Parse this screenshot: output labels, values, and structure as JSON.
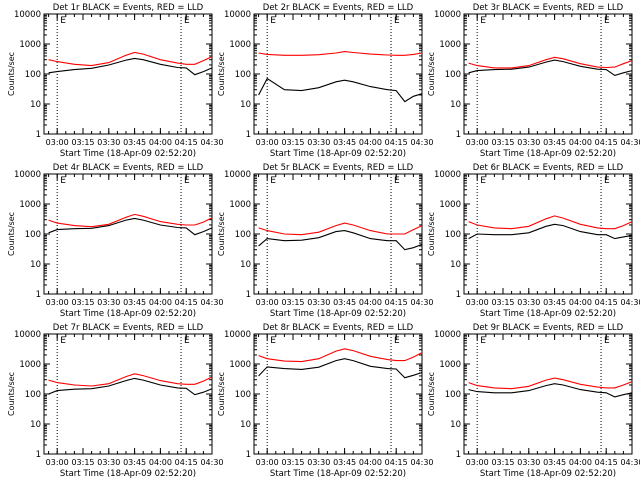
{
  "colors": {
    "events": "#000000",
    "lld": "#ff0000",
    "axis": "#000000",
    "marker": "#000000"
  },
  "shared": {
    "xlabel": "Start Time (18-Apr-09 02:52:20)",
    "ylabel": "Counts/sec",
    "x_tick_labels": [
      "03:00",
      "03:15",
      "03:30",
      "03:45",
      "04:00",
      "04:15",
      "04:30"
    ],
    "y_tick_labels": [
      "1",
      "10",
      "100",
      "1000",
      "10000"
    ],
    "x_range": [
      "02:52:20",
      "04:30"
    ],
    "y_range": [
      1,
      10000
    ],
    "y_scale": "log",
    "vertical_dotted_lines": [
      "03:00",
      "04:12"
    ],
    "corner_marker": "E"
  },
  "chart_data": [
    {
      "type": "line",
      "title": "Det 1r BLACK = Events, RED = LLD",
      "x": [
        "02:55",
        "03:00",
        "03:10",
        "03:20",
        "03:30",
        "03:40",
        "03:45",
        "03:50",
        "04:00",
        "04:10",
        "04:15",
        "04:20",
        "04:25",
        "04:30"
      ],
      "series": [
        {
          "name": "Events",
          "values": [
            110,
            120,
            140,
            155,
            200,
            290,
            330,
            300,
            210,
            165,
            160,
            95,
            120,
            160
          ]
        },
        {
          "name": "LLD",
          "values": [
            300,
            260,
            210,
            190,
            240,
            420,
            520,
            460,
            300,
            230,
            210,
            210,
            280,
            380
          ]
        }
      ]
    },
    {
      "type": "line",
      "title": "Det 2r BLACK = Events, RED = LLD",
      "x": [
        "02:55",
        "03:00",
        "03:10",
        "03:20",
        "03:30",
        "03:40",
        "03:45",
        "03:50",
        "04:00",
        "04:10",
        "04:15",
        "04:20",
        "04:25",
        "04:30"
      ],
      "series": [
        {
          "name": "Events",
          "values": [
            20,
            70,
            30,
            28,
            35,
            55,
            62,
            55,
            38,
            30,
            28,
            12,
            18,
            22
          ]
        },
        {
          "name": "LLD",
          "values": [
            500,
            450,
            420,
            420,
            440,
            500,
            560,
            520,
            460,
            430,
            420,
            420,
            450,
            500
          ]
        }
      ]
    },
    {
      "type": "line",
      "title": "Det 3r BLACK = Events, RED = LLD",
      "x": [
        "02:55",
        "03:00",
        "03:10",
        "03:20",
        "03:30",
        "03:40",
        "03:45",
        "03:50",
        "04:00",
        "04:10",
        "04:15",
        "04:20",
        "04:25",
        "04:30"
      ],
      "series": [
        {
          "name": "Events",
          "values": [
            110,
            130,
            140,
            145,
            170,
            250,
            290,
            260,
            180,
            145,
            140,
            90,
            110,
            130
          ]
        },
        {
          "name": "LLD",
          "values": [
            230,
            190,
            160,
            160,
            190,
            300,
            360,
            320,
            220,
            170,
            165,
            170,
            220,
            280
          ]
        }
      ]
    },
    {
      "type": "line",
      "title": "Det 4r BLACK = Events, RED = LLD",
      "x": [
        "02:55",
        "03:00",
        "03:10",
        "03:20",
        "03:30",
        "03:40",
        "03:45",
        "03:50",
        "04:00",
        "04:10",
        "04:15",
        "04:20",
        "04:25",
        "04:30"
      ],
      "series": [
        {
          "name": "Events",
          "values": [
            110,
            140,
            150,
            155,
            190,
            290,
            330,
            290,
            200,
            165,
            160,
            95,
            120,
            160
          ]
        },
        {
          "name": "LLD",
          "values": [
            290,
            230,
            190,
            175,
            210,
            360,
            450,
            390,
            260,
            210,
            200,
            200,
            250,
            350
          ]
        }
      ]
    },
    {
      "type": "line",
      "title": "Det 5r BLACK = Events, RED = LLD",
      "x": [
        "02:55",
        "03:00",
        "03:10",
        "03:20",
        "03:30",
        "03:40",
        "03:45",
        "03:50",
        "04:00",
        "04:10",
        "04:15",
        "04:20",
        "04:25",
        "04:30"
      ],
      "series": [
        {
          "name": "Events",
          "values": [
            40,
            70,
            60,
            62,
            75,
            120,
            130,
            110,
            70,
            60,
            60,
            30,
            35,
            45
          ]
        },
        {
          "name": "LLD",
          "values": [
            160,
            130,
            100,
            95,
            115,
            190,
            230,
            200,
            130,
            100,
            100,
            100,
            140,
            190
          ]
        }
      ]
    },
    {
      "type": "line",
      "title": "Det 6r BLACK = Events, RED = LLD",
      "x": [
        "02:55",
        "03:00",
        "03:10",
        "03:20",
        "03:30",
        "03:40",
        "03:45",
        "03:50",
        "04:00",
        "04:10",
        "04:15",
        "04:20",
        "04:25",
        "04:30"
      ],
      "series": [
        {
          "name": "Events",
          "values": [
            70,
            100,
            95,
            95,
            110,
            180,
            210,
            190,
            120,
            95,
            95,
            70,
            80,
            90
          ]
        },
        {
          "name": "LLD",
          "values": [
            260,
            200,
            160,
            150,
            180,
            320,
            400,
            340,
            210,
            160,
            150,
            150,
            190,
            260
          ]
        }
      ]
    },
    {
      "type": "line",
      "title": "Det 7r BLACK = Events, RED = LLD",
      "x": [
        "02:55",
        "03:00",
        "03:10",
        "03:20",
        "03:30",
        "03:40",
        "03:45",
        "03:50",
        "04:00",
        "04:10",
        "04:15",
        "04:20",
        "04:25",
        "04:30"
      ],
      "series": [
        {
          "name": "Events",
          "values": [
            100,
            130,
            145,
            150,
            185,
            280,
            330,
            290,
            200,
            160,
            155,
            95,
            115,
            150
          ]
        },
        {
          "name": "LLD",
          "values": [
            290,
            240,
            200,
            185,
            220,
            380,
            470,
            410,
            280,
            220,
            210,
            210,
            270,
            370
          ]
        }
      ]
    },
    {
      "type": "line",
      "title": "Det 8r BLACK = Events, RED = LLD",
      "x": [
        "02:55",
        "03:00",
        "03:10",
        "03:20",
        "03:30",
        "03:40",
        "03:45",
        "03:50",
        "04:00",
        "04:10",
        "04:15",
        "04:20",
        "04:25",
        "04:30"
      ],
      "series": [
        {
          "name": "Events",
          "values": [
            400,
            800,
            700,
            660,
            780,
            1300,
            1500,
            1300,
            840,
            700,
            680,
            350,
            420,
            520
          ]
        },
        {
          "name": "LLD",
          "values": [
            1900,
            1500,
            1250,
            1200,
            1500,
            2700,
            3200,
            2800,
            1800,
            1400,
            1300,
            1300,
            1700,
            2400
          ]
        }
      ]
    },
    {
      "type": "line",
      "title": "Det 9r BLACK = Events, RED = LLD",
      "x": [
        "02:55",
        "03:00",
        "03:10",
        "03:20",
        "03:30",
        "03:40",
        "03:45",
        "03:50",
        "04:00",
        "04:10",
        "04:15",
        "04:20",
        "04:25",
        "04:30"
      ],
      "series": [
        {
          "name": "Events",
          "values": [
            140,
            120,
            110,
            110,
            130,
            190,
            220,
            200,
            140,
            115,
            110,
            80,
            95,
            110
          ]
        },
        {
          "name": "LLD",
          "values": [
            240,
            190,
            160,
            150,
            180,
            290,
            340,
            300,
            210,
            170,
            160,
            160,
            200,
            260
          ]
        }
      ]
    }
  ]
}
